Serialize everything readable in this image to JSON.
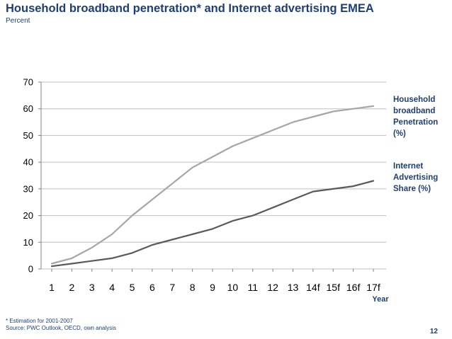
{
  "header": {
    "title": "Household broadband penetration* and Internet advertising  EMEA",
    "subtitle": "Percent"
  },
  "chart_data": {
    "type": "line",
    "categories": [
      "1",
      "2",
      "3",
      "4",
      "5",
      "6",
      "7",
      "8",
      "9",
      "10",
      "11",
      "12",
      "13",
      "14f",
      "15f",
      "16f",
      "17f"
    ],
    "series": [
      {
        "name": "Household broadband Penetration (%)",
        "color": "#a6a6a6",
        "values": [
          2,
          4,
          8,
          13,
          20,
          26,
          32,
          38,
          42,
          46,
          49,
          52,
          55,
          57,
          59,
          60,
          61
        ]
      },
      {
        "name": "Internet Advertising Share (%)",
        "color": "#595959",
        "values": [
          1,
          2,
          3,
          4,
          6,
          9,
          11,
          13,
          15,
          18,
          20,
          23,
          26,
          29,
          30,
          31,
          33
        ]
      }
    ],
    "yticks": [
      0,
      10,
      20,
      30,
      40,
      50,
      60,
      70
    ],
    "ylim": [
      0,
      70
    ],
    "xlabel": "Year",
    "ylabel": "",
    "grid": true,
    "legend_position": "right"
  },
  "legend": {
    "series1": [
      "Household",
      "broadband",
      "Penetration",
      "(%)"
    ],
    "series2": [
      "Internet",
      "Advertising",
      "Share (%)"
    ]
  },
  "footer": {
    "footnote": "* Estimation for 2001-2007",
    "source": "Source: PWC Outlook, OECD, own analysis",
    "page_number": "12"
  }
}
